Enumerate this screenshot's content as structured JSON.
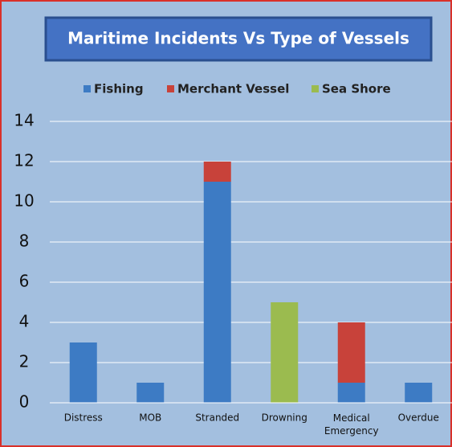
{
  "chart_data": {
    "type": "stacked_bar",
    "title": "Maritime Incidents Vs Type of Vessels",
    "categories": [
      "Distress",
      "MOB",
      "Stranded",
      "Drowning",
      "Medical Emergency",
      "Overdue"
    ],
    "series": [
      {
        "name": "Fishing",
        "color": "#3d7bc4",
        "values": [
          3,
          1,
          11,
          0,
          1,
          1
        ]
      },
      {
        "name": "Merchant Vessel",
        "color": "#c8423a",
        "values": [
          0,
          0,
          1,
          0,
          3,
          0
        ]
      },
      {
        "name": "Sea Shore",
        "color": "#9bbb4f",
        "values": [
          0,
          0,
          0,
          5,
          0,
          0
        ]
      }
    ],
    "ylim": [
      0,
      14
    ],
    "yticks": [
      0,
      2,
      4,
      6,
      8,
      10,
      12,
      14
    ],
    "grid": true,
    "legend": "top"
  }
}
